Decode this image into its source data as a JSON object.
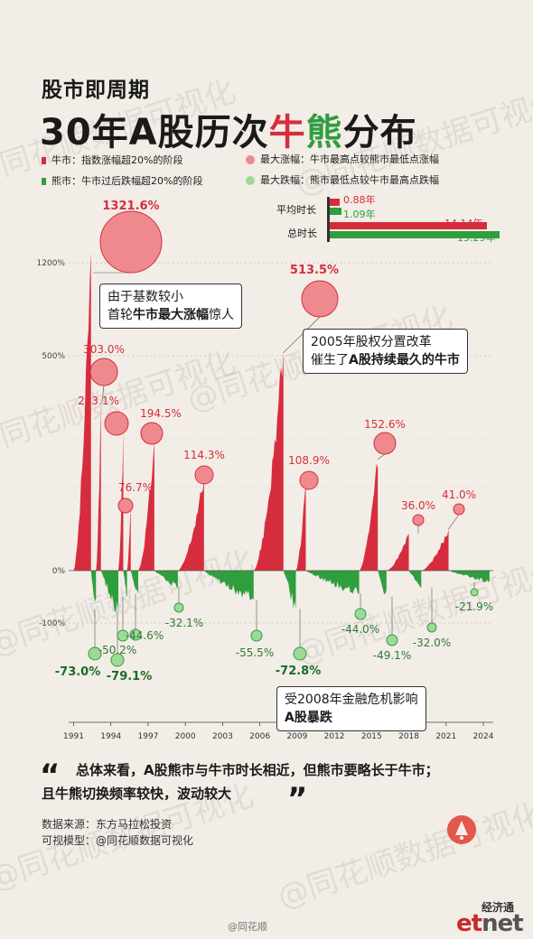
{
  "header": {
    "eyebrow": "股市即周期",
    "title_part1": "30年A股历次",
    "title_bull": "牛",
    "title_bear": "熊",
    "title_part2": "分布"
  },
  "legend": {
    "bull": "牛市：指数涨幅超20%的阶段",
    "bear": "熊市：牛市过后跌幅超20%的阶段",
    "max_rise": "最大涨幅：牛市最高点较熊市最低点涨幅",
    "max_fall": "最大跌幅：熊市最低点较牛市最高点跌幅"
  },
  "summary": {
    "avg_label": "平均时长",
    "total_label": "总时长",
    "avg_bull": "0.88年",
    "avg_bear": "1.09年",
    "total_bull": "14.14年",
    "total_bear": "15.29年",
    "avg_bull_value": 0.88,
    "avg_bear_value": 1.09,
    "total_bull_value": 14.14,
    "total_bear_value": 15.29
  },
  "colors": {
    "bull": "#d62d3e",
    "bear": "#2f9e3f",
    "bull_circle": "#ee8a8e",
    "bear_circle": "#9fd99a",
    "background": "#f2ede6"
  },
  "callouts": {
    "c1_line1": "由于基数较小",
    "c1_line2a": "首轮",
    "c1_line2b": "牛市最大涨幅",
    "c1_line2c": "惊人",
    "c2_line1": "2005年股权分置改革",
    "c2_line2a": "催生了",
    "c2_line2b": "A股持续最久的牛市",
    "c3_line1": "受2008年金融危机影响",
    "c3_line2": "A股暴跌"
  },
  "quote": {
    "line1": "总体来看，A股熊市与牛市时长相近，但熊市要略长于牛市；",
    "line2": "且牛熊切换频率较快，波动较大",
    "open": "“",
    "close": "”"
  },
  "source": {
    "line1": "数据来源：东方马拉松投资",
    "line2": "可视模型：@同花顺数据可视化"
  },
  "branding": {
    "weibo": "@同花顺",
    "etnet_small": "经济通",
    "etnet_e": "et",
    "etnet_rest": "net",
    "watermark": "@同花顺数据可视化"
  },
  "chart_data": {
    "type": "area",
    "x_ticks": [
      "1991",
      "1994",
      "1997",
      "2000",
      "2003",
      "2006",
      "2009",
      "2012",
      "2015",
      "2018",
      "2021",
      "2024"
    ],
    "y_ticks_positive": [
      "0%",
      "500%",
      "1200%"
    ],
    "y_ticks_negative": [
      "-100%"
    ],
    "bull_peaks": [
      {
        "year": 1992.5,
        "rise": 1321.6,
        "label": "1321.6%"
      },
      {
        "year": 1993.2,
        "rise": 303.0,
        "label": "303.0%"
      },
      {
        "year": 1994.9,
        "rise": 223.1,
        "label": "223.1%"
      },
      {
        "year": 1995.4,
        "rise": 76.7,
        "label": "76.7%"
      },
      {
        "year": 1997.3,
        "rise": 194.5,
        "label": "194.5%"
      },
      {
        "year": 2001.5,
        "rise": 114.3,
        "label": "114.3%"
      },
      {
        "year": 2007.8,
        "rise": 513.5,
        "label": "513.5%"
      },
      {
        "year": 2009.6,
        "rise": 108.9,
        "label": "108.9%"
      },
      {
        "year": 2015.4,
        "rise": 152.6,
        "label": "152.6%"
      },
      {
        "year": 2019.2,
        "rise": 36.0,
        "label": "36.0%"
      },
      {
        "year": 2021.1,
        "rise": 41.0,
        "label": "41.0%"
      }
    ],
    "bear_troughs": [
      {
        "year": 1992.3,
        "fall": -73.0,
        "label": "-73.0%"
      },
      {
        "year": 1994.6,
        "fall": -79.1,
        "label": "-79.1%"
      },
      {
        "year": 1995.0,
        "fall": -50.2,
        "label": "-50.2%"
      },
      {
        "year": 1996.1,
        "fall": -44.6,
        "label": "-44.6%"
      },
      {
        "year": 1999.3,
        "fall": -32.1,
        "label": "-32.1%"
      },
      {
        "year": 2005.4,
        "fall": -55.5,
        "label": "-55.5%"
      },
      {
        "year": 2008.8,
        "fall": -72.8,
        "label": "-72.8%"
      },
      {
        "year": 2013.1,
        "fall": -44.0,
        "label": "-44.0%"
      },
      {
        "year": 2016.1,
        "fall": -49.1,
        "label": "-49.1%"
      },
      {
        "year": 2018.9,
        "fall": -32.0,
        "label": "-32.0%"
      },
      {
        "year": 2022.9,
        "fall": -21.9,
        "label": "-21.9%"
      }
    ],
    "bull_periods": [
      [
        1991.0,
        1992.4,
        1321.6
      ],
      [
        1992.8,
        1993.2,
        303.0
      ],
      [
        1994.6,
        1995.0,
        223.1
      ],
      [
        1995.3,
        1995.6,
        76.7
      ],
      [
        1996.2,
        1997.5,
        194.5
      ],
      [
        1999.4,
        2001.5,
        114.3
      ],
      [
        2005.5,
        2007.9,
        513.5
      ],
      [
        2008.9,
        2009.7,
        108.9
      ],
      [
        2014.0,
        2015.5,
        152.6
      ],
      [
        2016.2,
        2018.0,
        36.0
      ],
      [
        2019.0,
        2021.2,
        41.0
      ]
    ],
    "bear_periods": [
      [
        1992.4,
        1992.8,
        -73.0
      ],
      [
        1993.2,
        1994.6,
        -79.1
      ],
      [
        1995.0,
        1995.3,
        -50.2
      ],
      [
        1995.6,
        1996.2,
        -44.6
      ],
      [
        1997.5,
        1999.4,
        -32.1
      ],
      [
        2001.5,
        2005.5,
        -55.5
      ],
      [
        2007.9,
        2008.9,
        -72.8
      ],
      [
        2009.7,
        2014.0,
        -44.0
      ],
      [
        2015.5,
        2016.2,
        -49.1
      ],
      [
        2018.0,
        2019.0,
        -32.0
      ],
      [
        2021.2,
        2024.5,
        -21.9
      ]
    ],
    "xlim": [
      1990.6,
      2024.8
    ]
  }
}
